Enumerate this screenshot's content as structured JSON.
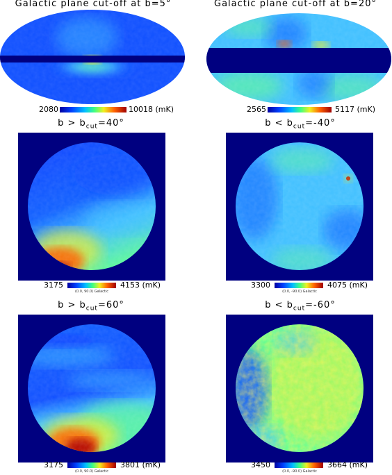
{
  "panels": [
    {
      "id": "p1",
      "title": "Galactic plane cut-off at b=5°",
      "cb_min": "2080",
      "cb_max": "10018",
      "unit": "(mK)",
      "coord": ""
    },
    {
      "id": "p2",
      "title": "Galactic plane cut-off at b=20°",
      "cb_min": "2565",
      "cb_max": "5117",
      "unit": "(mK)",
      "coord": ""
    },
    {
      "id": "p3",
      "title_pre": "b > b",
      "title_sub": "cut",
      "title_post": "=40°",
      "cb_min": "3175",
      "cb_max": "4153",
      "unit": "(mK)",
      "coord": "(0.0, 90.0) Galactic"
    },
    {
      "id": "p4",
      "title_pre": "b < b",
      "title_sub": "cut",
      "title_post": "=-40°",
      "cb_min": "3300",
      "cb_max": "4075",
      "unit": "(mK)",
      "coord": "(0.0, -90.0) Galactic"
    },
    {
      "id": "p5",
      "title_pre": "b > b",
      "title_sub": "cut",
      "title_post": "=60°",
      "cb_min": "3175",
      "cb_max": "3801",
      "unit": "(mK)",
      "coord": "(0.0, 90.0) Galactic"
    },
    {
      "id": "p6",
      "title_pre": "b < b",
      "title_sub": "cut",
      "title_post": "=-60°",
      "cb_min": "3450",
      "cb_max": "3664",
      "unit": "(mK)",
      "coord": "(0.0, -90.0) Galactic"
    }
  ],
  "colors": {
    "deep_blue": "#000080",
    "blue": "#1050ff",
    "cyan": "#40c0ff",
    "green": "#60ff90",
    "yellow": "#f0f020",
    "orange": "#ff6000",
    "red": "#b00000"
  }
}
